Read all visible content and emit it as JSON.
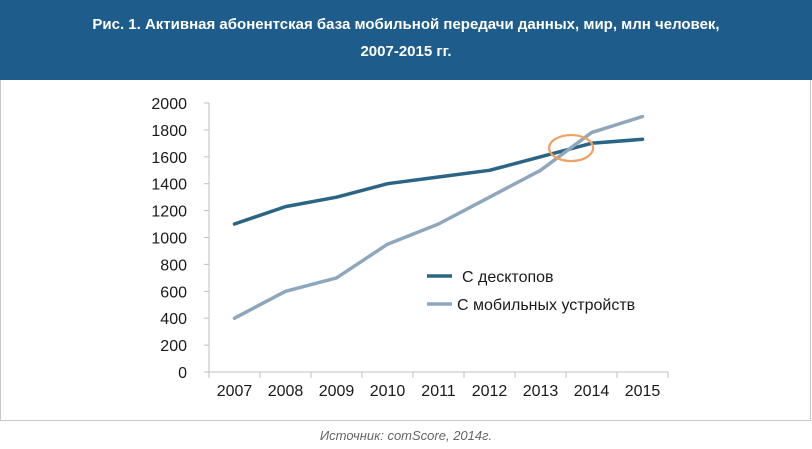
{
  "header": {
    "title_line1": "Рис. 1. Активная абонентская база мобильной передачи данных, мир, млн человек,",
    "title_line2": "2007-2015 гг."
  },
  "chart_data": {
    "type": "line",
    "categories": [
      "2007",
      "2008",
      "2009",
      "2010",
      "2011",
      "2012",
      "2013",
      "2014",
      "2015"
    ],
    "series": [
      {
        "name": "С десктопов",
        "color": "#2a6585",
        "values": [
          1100,
          1230,
          1300,
          1400,
          1450,
          1500,
          1600,
          1700,
          1730
        ]
      },
      {
        "name": "С мобильных устройств",
        "color": "#8fa7bd",
        "values": [
          400,
          600,
          700,
          950,
          1100,
          1300,
          1500,
          1780,
          1900
        ]
      }
    ],
    "ylim": [
      0,
      2000
    ],
    "yticks": [
      0,
      200,
      400,
      600,
      800,
      1000,
      1200,
      1400,
      1600,
      1800,
      2000
    ],
    "grid": false,
    "legend_position": "lower-right",
    "annotation": {
      "type": "ellipse",
      "color": "#f0a060",
      "center_x": 2013.6,
      "center_y": 1665,
      "note": "crossover highlight"
    }
  },
  "source": "Источник: comScore, 2014г."
}
